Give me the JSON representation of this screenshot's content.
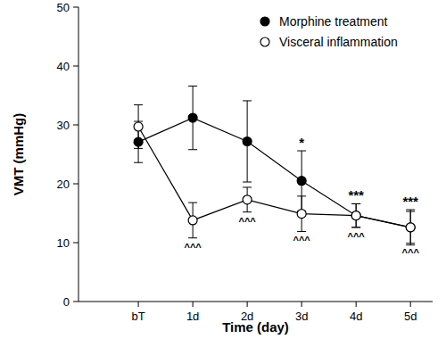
{
  "chart_data": {
    "type": "line",
    "x_label": "Time (day)",
    "y_label": "VMT (mmHg)",
    "categories": [
      "bT",
      "1d",
      "2d",
      "3d",
      "4d",
      "5d"
    ],
    "series": [
      {
        "name": "Morphine treatment",
        "color": "#000000",
        "marker": "filled-circle",
        "values": [
          27.1,
          31.2,
          27.2,
          20.5,
          14.6,
          12.6
        ],
        "errors": [
          3.5,
          5.4,
          6.9,
          5.1,
          2.0,
          3.0
        ],
        "annotations": [
          null,
          null,
          null,
          "*",
          "***",
          "***"
        ]
      },
      {
        "name": "Visceral inflammation",
        "color": "#000000",
        "marker": "open-circle",
        "values": [
          29.7,
          13.8,
          17.3,
          14.9,
          14.6,
          12.6
        ],
        "errors": [
          3.7,
          3.0,
          2.1,
          3.0,
          2.0,
          2.7
        ],
        "annotations": [
          null,
          "^^^",
          "^^^",
          "^^^",
          "^^^",
          "^^^"
        ]
      }
    ],
    "ylim": [
      0,
      50
    ],
    "yticks": [
      0,
      10,
      20,
      30,
      40,
      50
    ],
    "legend": "upper-right"
  }
}
